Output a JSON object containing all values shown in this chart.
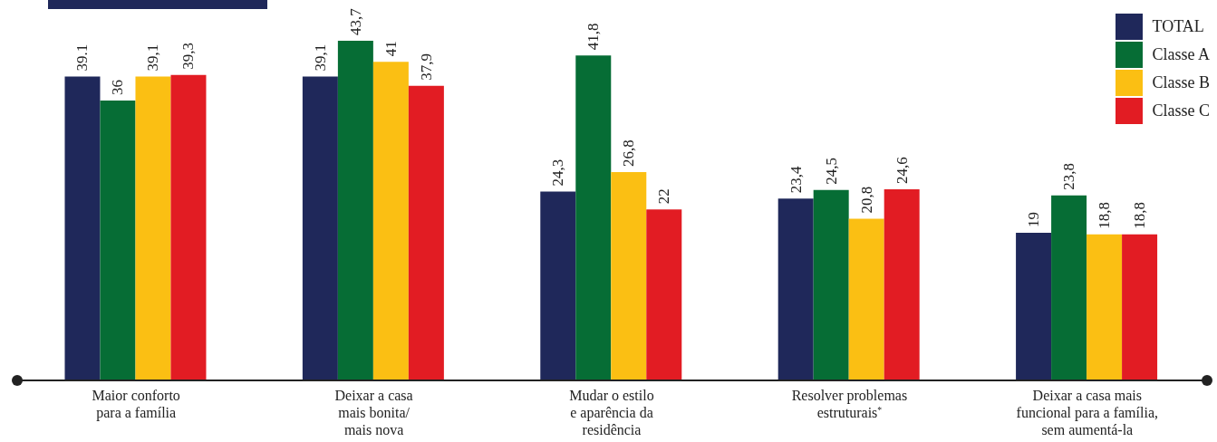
{
  "chart_data": {
    "type": "bar",
    "categories": [
      "Maior conforto\npara a família",
      "Deixar a casa\nmais bonita/\nmais nova",
      "Mudar o estilo\ne aparência da\nresidência",
      "Resolver problemas\nestruturais$^{*}$",
      "Deixar a casa mais\nfuncional para a família,\nsem aumentá-la"
    ],
    "series": [
      {
        "name": "TOTAL",
        "color": "#1f285a",
        "values": [
          39.1,
          39.1,
          24.3,
          23.4,
          19
        ],
        "value_labels": [
          "39.1",
          "39,1",
          "24,3",
          "23,4",
          "19"
        ]
      },
      {
        "name": "Classe A",
        "color": "#066d35",
        "values": [
          36,
          43.7,
          41.8,
          24.5,
          23.8
        ],
        "value_labels": [
          "36",
          "43,7",
          "41,8",
          "24,5",
          "23,8"
        ]
      },
      {
        "name": "Classe B",
        "color": "#fbbf13",
        "values": [
          39.1,
          41,
          26.8,
          20.8,
          18.8
        ],
        "value_labels": [
          "39,1",
          "41",
          "26,8",
          "20,8",
          "18,8"
        ]
      },
      {
        "name": "Classe C",
        "color": "#e21c23",
        "values": [
          39.3,
          37.9,
          22,
          24.6,
          18.8
        ],
        "value_labels": [
          "39,3",
          "37,9",
          "22",
          "24,6",
          "18,8"
        ]
      }
    ],
    "legend": "top right",
    "grid": false
  }
}
